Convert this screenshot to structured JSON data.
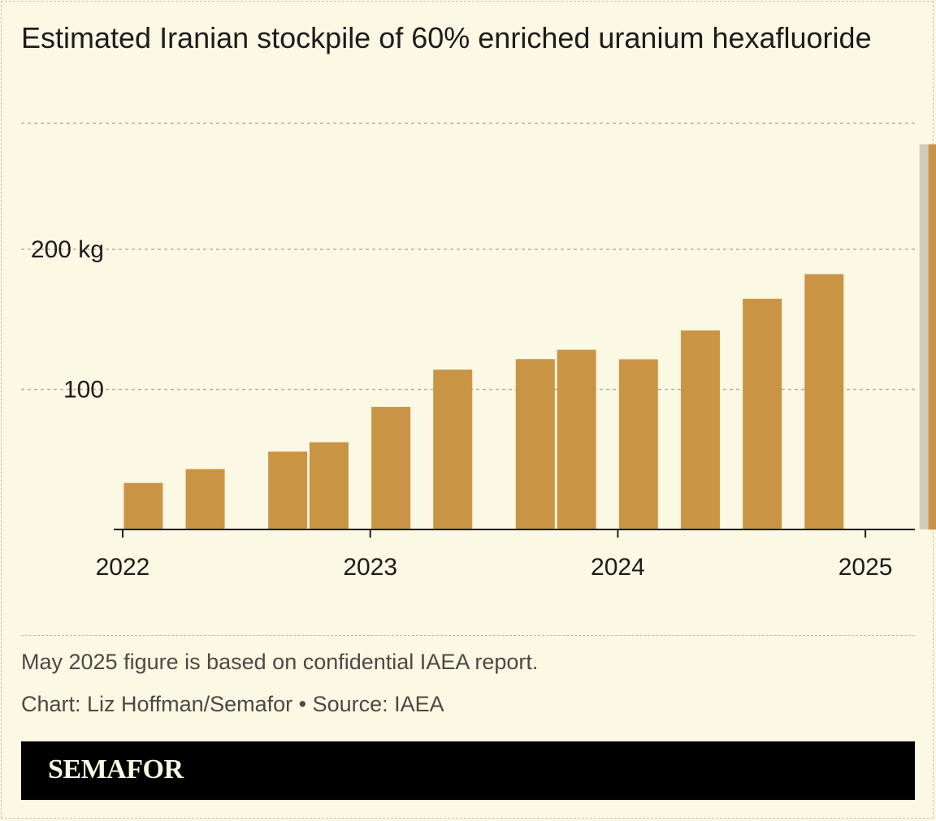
{
  "title": "Estimated Iranian stockpile of 60% enriched uranium hexafluoride",
  "note": "May 2025 figure is based on confidential IAEA report.",
  "credit": "Chart: Liz Hoffman/Semafor • Source: IAEA",
  "brand": "SEMAFOR",
  "colors": {
    "bar": "#c99544",
    "highlight": "#cfcbb6",
    "background": "#fbf8e4",
    "gridline": "#b5b2a2",
    "axis": "#1c1c1c"
  },
  "chart_data": {
    "type": "bar",
    "title": "Estimated Iranian stockpile of 60% enriched uranium hexafluoride",
    "xlabel": "",
    "ylabel": "",
    "x_axis": "time",
    "x_tick_labels": [
      "2022",
      "2023",
      "2024",
      "2025"
    ],
    "y_ticks": [
      {
        "value": 100,
        "label": "100"
      },
      {
        "value": 200,
        "label": "200 kg"
      },
      {
        "value": 290,
        "label": ""
      }
    ],
    "ylim": [
      0,
      290
    ],
    "grid": true,
    "highlighted_bar": "May 2025",
    "categories": [
      "Feb 2022",
      "May 2022",
      "Sep 2022",
      "Nov 2022",
      "Feb 2023",
      "May 2023",
      "Sep 2023",
      "Nov 2023",
      "Feb 2024",
      "May 2024",
      "Aug 2024",
      "Nov 2024",
      "May 2025"
    ],
    "dates": [
      "2022-02",
      "2022-05",
      "2022-09",
      "2022-11",
      "2023-02",
      "2023-05",
      "2023-09",
      "2023-11",
      "2024-02",
      "2024-05",
      "2024-08",
      "2024-11",
      "2025-05"
    ],
    "values": [
      33.2,
      43.1,
      55.6,
      62.3,
      87.5,
      114.1,
      121.6,
      128.3,
      121.5,
      142.1,
      164.7,
      182.3,
      275
    ]
  }
}
